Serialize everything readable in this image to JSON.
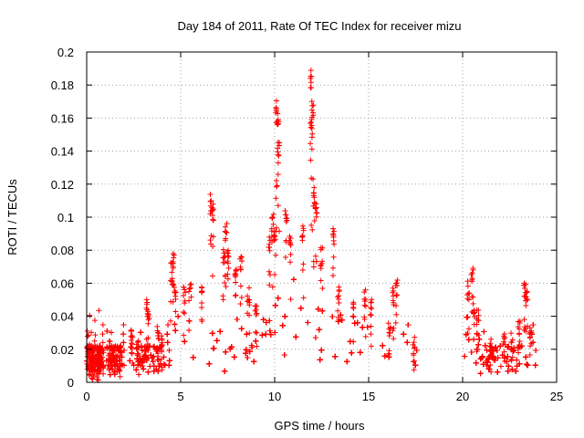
{
  "chart_data": {
    "type": "scatter",
    "title": "Day 184 of 2011, Rate Of TEC Index for receiver mizu",
    "xlabel": "GPS time / hours",
    "ylabel": "ROTI / TECUs",
    "xlim": [
      0,
      25
    ],
    "ylim": [
      0,
      0.2
    ],
    "xticks": [
      0,
      5,
      10,
      15,
      20,
      25
    ],
    "yticks": [
      0,
      0.02,
      0.04,
      0.06,
      0.08,
      0.1,
      0.12,
      0.14,
      0.16,
      0.18,
      0.2
    ],
    "xtick_labels": [
      "0",
      "5",
      "10",
      "15",
      "20",
      "25"
    ],
    "ytick_labels": [
      "0",
      "0.02",
      "0.04",
      "0.06",
      "0.08",
      "0.1",
      "0.12",
      "0.14",
      "0.16",
      "0.18",
      "0.2"
    ],
    "grid": true,
    "marker": "+",
    "color": "#ff0000",
    "clusters": [
      {
        "x": 0.1,
        "y": 0.031
      },
      {
        "x": 0.15,
        "y": 0.024
      },
      {
        "x": 0.3,
        "y": 0.018
      },
      {
        "x": 0.6,
        "y": 0.014
      },
      {
        "x": 1.2,
        "y": 0.025
      },
      {
        "x": 1.5,
        "y": 0.02
      },
      {
        "x": 1.8,
        "y": 0.022
      },
      {
        "x": 2.4,
        "y": 0.034
      },
      {
        "x": 2.7,
        "y": 0.028
      },
      {
        "x": 3.2,
        "y": 0.051
      },
      {
        "x": 3.3,
        "y": 0.047
      },
      {
        "x": 3.8,
        "y": 0.038
      },
      {
        "x": 4.0,
        "y": 0.03
      },
      {
        "x": 4.5,
        "y": 0.073
      },
      {
        "x": 4.6,
        "y": 0.08
      },
      {
        "x": 4.7,
        "y": 0.062
      },
      {
        "x": 5.2,
        "y": 0.058
      },
      {
        "x": 5.5,
        "y": 0.061
      },
      {
        "x": 6.1,
        "y": 0.06
      },
      {
        "x": 6.6,
        "y": 0.114
      },
      {
        "x": 6.7,
        "y": 0.109
      },
      {
        "x": 7.4,
        "y": 0.098
      },
      {
        "x": 7.3,
        "y": 0.084
      },
      {
        "x": 7.5,
        "y": 0.082
      },
      {
        "x": 7.9,
        "y": 0.075
      },
      {
        "x": 8.2,
        "y": 0.08
      },
      {
        "x": 8.6,
        "y": 0.058
      },
      {
        "x": 9.0,
        "y": 0.05
      },
      {
        "x": 9.7,
        "y": 0.09
      },
      {
        "x": 9.9,
        "y": 0.102
      },
      {
        "x": 10.0,
        "y": 0.098
      },
      {
        "x": 10.1,
        "y": 0.172
      },
      {
        "x": 10.15,
        "y": 0.162
      },
      {
        "x": 10.2,
        "y": 0.148
      },
      {
        "x": 10.6,
        "y": 0.109
      },
      {
        "x": 10.8,
        "y": 0.092
      },
      {
        "x": 11.5,
        "y": 0.095
      },
      {
        "x": 11.9,
        "y": 0.19
      },
      {
        "x": 12.0,
        "y": 0.172
      },
      {
        "x": 11.95,
        "y": 0.16
      },
      {
        "x": 12.1,
        "y": 0.12
      },
      {
        "x": 12.2,
        "y": 0.11
      },
      {
        "x": 12.5,
        "y": 0.082
      },
      {
        "x": 13.1,
        "y": 0.093
      },
      {
        "x": 13.4,
        "y": 0.06
      },
      {
        "x": 14.2,
        "y": 0.052
      },
      {
        "x": 14.8,
        "y": 0.057
      },
      {
        "x": 15.1,
        "y": 0.052
      },
      {
        "x": 16.3,
        "y": 0.058
      },
      {
        "x": 16.5,
        "y": 0.064
      },
      {
        "x": 16.1,
        "y": 0.04
      },
      {
        "x": 17.4,
        "y": 0.028
      },
      {
        "x": 20.3,
        "y": 0.062
      },
      {
        "x": 20.5,
        "y": 0.072
      },
      {
        "x": 20.6,
        "y": 0.05
      },
      {
        "x": 20.8,
        "y": 0.044
      },
      {
        "x": 21.5,
        "y": 0.028
      },
      {
        "x": 22.2,
        "y": 0.032
      },
      {
        "x": 22.6,
        "y": 0.03
      },
      {
        "x": 23.0,
        "y": 0.04
      },
      {
        "x": 23.3,
        "y": 0.064
      },
      {
        "x": 23.4,
        "y": 0.058
      },
      {
        "x": 23.6,
        "y": 0.036
      }
    ]
  }
}
